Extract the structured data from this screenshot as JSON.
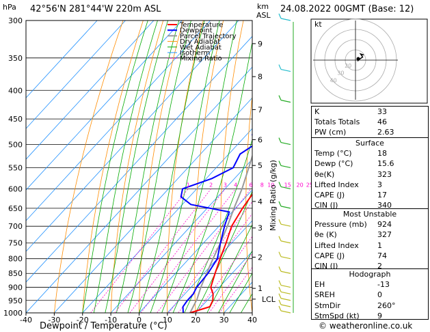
{
  "header": {
    "pressure_unit": "hPa",
    "location": "42°56'N  281°44'W  220m  ASL",
    "height_unit": "km",
    "height_sub": "ASL",
    "datetime": "24.08.2022  00GMT  (Base: 12)"
  },
  "chart_data": {
    "type": "skew-T log-P",
    "xlabel": "Dewpoint / Temperature (°C)",
    "mixing_axis_label": "Mixing Ratio (g/kg)",
    "x_ticks": [
      -40,
      -30,
      -20,
      -10,
      0,
      10,
      20,
      30,
      40
    ],
    "pressure_levels": [
      300,
      350,
      400,
      450,
      500,
      550,
      600,
      650,
      700,
      750,
      800,
      850,
      900,
      950,
      1000
    ],
    "height_ticks": [
      {
        "km": "1",
        "p": 904
      },
      {
        "km": "2",
        "p": 795
      },
      {
        "km": "3",
        "p": 705
      },
      {
        "km": "4",
        "p": 632
      },
      {
        "km": "5",
        "p": 545
      },
      {
        "km": "6",
        "p": 490
      },
      {
        "km": "7",
        "p": 433
      },
      {
        "km": "8",
        "p": 378
      },
      {
        "km": "9",
        "p": 330
      }
    ],
    "lcl": {
      "label": "LCL",
      "p": 945
    },
    "mixing_ratio_labels": [
      "1",
      "2",
      "3",
      "4",
      "6",
      "8",
      "10",
      "15",
      "20",
      "25"
    ],
    "mixing_ratio_values": [
      1,
      2,
      3,
      4,
      6,
      8,
      10,
      15,
      20,
      25
    ],
    "legend": [
      "Temperature",
      "Dewpoint",
      "Parcel Trajectory",
      "Dry Adiabat",
      "Wet Adiabat",
      "Isotherm",
      "Mixing Ratio"
    ],
    "colors": {
      "temperature": "#ff0000",
      "dewpoint": "#0000ff",
      "parcel": "#999999",
      "dry": "#ff8c00",
      "wet": "#00aa00",
      "isotherm": "#1e90ff",
      "mixing": "#ff00cc"
    },
    "temperature": [
      [
        1000,
        18
      ],
      [
        975,
        23
      ],
      [
        950,
        22
      ],
      [
        925,
        20
      ],
      [
        900,
        17
      ],
      [
        850,
        14
      ],
      [
        800,
        11
      ],
      [
        750,
        8
      ],
      [
        700,
        4.5
      ],
      [
        650,
        2.5
      ],
      [
        600,
        1
      ],
      [
        550,
        -3
      ],
      [
        500,
        -7.5
      ],
      [
        450,
        -12
      ],
      [
        400,
        -18
      ],
      [
        350,
        -25
      ],
      [
        300,
        -33
      ]
    ],
    "dewpoint": [
      [
        1000,
        15.6
      ],
      [
        975,
        13.5
      ],
      [
        950,
        13
      ],
      [
        925,
        13
      ],
      [
        900,
        12
      ],
      [
        850,
        11.5
      ],
      [
        800,
        10
      ],
      [
        750,
        6
      ],
      [
        700,
        2
      ],
      [
        660,
        -1
      ],
      [
        640,
        -17
      ],
      [
        620,
        -23
      ],
      [
        600,
        -25
      ],
      [
        575,
        -18
      ],
      [
        550,
        -14
      ],
      [
        520,
        -16
      ],
      [
        500,
        -14
      ],
      [
        480,
        -18
      ],
      [
        450,
        -17
      ],
      [
        430,
        -17
      ],
      [
        420,
        -25
      ],
      [
        400,
        -26
      ],
      [
        370,
        -24
      ],
      [
        355,
        -25
      ],
      [
        350,
        -33
      ],
      [
        345,
        -15
      ],
      [
        330,
        -16
      ],
      [
        320,
        -10
      ],
      [
        300,
        -11
      ]
    ],
    "parcel": [
      [
        1000,
        18
      ],
      [
        945,
        16
      ],
      [
        900,
        13.5
      ],
      [
        850,
        11
      ],
      [
        800,
        8.5
      ],
      [
        750,
        6
      ],
      [
        700,
        3
      ],
      [
        650,
        -0.5
      ],
      [
        600,
        -4
      ],
      [
        550,
        -8.5
      ],
      [
        500,
        -13.5
      ],
      [
        450,
        -19
      ],
      [
        400,
        -25.5
      ],
      [
        350,
        -33
      ],
      [
        300,
        -42
      ]
    ]
  },
  "hodograph": {
    "label": "kt",
    "ring_labels": [
      "40",
      "30",
      "20"
    ],
    "trace_kt": [
      [
        2,
        -1
      ],
      [
        4,
        1
      ],
      [
        7,
        3
      ],
      [
        5,
        6
      ],
      [
        8,
        5
      ]
    ]
  },
  "indices": {
    "rows": [
      {
        "label": "K",
        "value": "33"
      },
      {
        "label": "Totals Totals",
        "value": "46"
      },
      {
        "label": "PW (cm)",
        "value": "2.63"
      }
    ],
    "surface_title": "Surface",
    "surface": [
      {
        "label": "Temp (°C)",
        "value": "18"
      },
      {
        "label": "Dewp (°C)",
        "value": "15.6"
      },
      {
        "label": "θe(K)",
        "value": "323"
      },
      {
        "label": "Lifted Index",
        "value": "3"
      },
      {
        "label": "CAPE (J)",
        "value": "17"
      },
      {
        "label": "CIN (J)",
        "value": "340"
      }
    ],
    "unstable_title": "Most Unstable",
    "unstable": [
      {
        "label": "Pressure (mb)",
        "value": "924"
      },
      {
        "label": "θe (K)",
        "value": "327"
      },
      {
        "label": "Lifted Index",
        "value": "1"
      },
      {
        "label": "CAPE (J)",
        "value": "74"
      },
      {
        "label": "CIN (J)",
        "value": "2"
      }
    ],
    "hodo_title": "Hodograph",
    "hodo": [
      {
        "label": "EH",
        "value": "-13"
      },
      {
        "label": "SREH",
        "value": "0"
      },
      {
        "label": "StmDir",
        "value": "260°"
      },
      {
        "label": "StmSpd (kt)",
        "value": "9"
      }
    ]
  },
  "footer": "© weatheronline.co.uk"
}
